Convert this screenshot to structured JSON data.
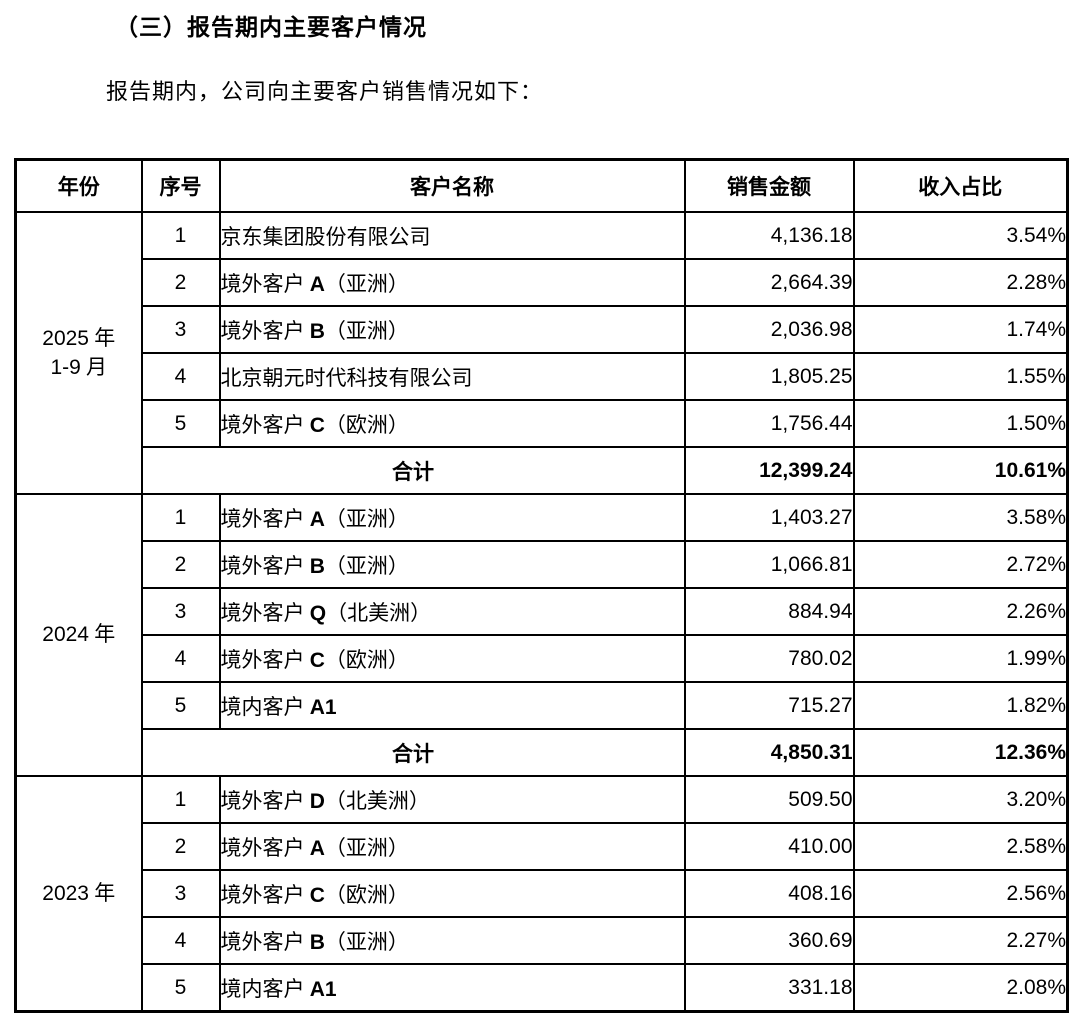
{
  "page": {
    "title": "（三）报告期内主要客户情况",
    "subtitle": "报告期内，公司向主要客户销售情况如下："
  },
  "table": {
    "headers": {
      "year": "年份",
      "index": "序号",
      "customer": "客户名称",
      "amount": "销售金额",
      "share": "收入占比"
    },
    "total_label": "合计",
    "groups": [
      {
        "year": "2025 年",
        "year_line2": "1-9 月",
        "rows": [
          {
            "index": "1",
            "customer": "京东集团股份有限公司",
            "amount": "4,136.18",
            "share": "3.54%"
          },
          {
            "index": "2",
            "customer": "境外客户 A（亚洲）",
            "amount": "2,664.39",
            "share": "2.28%"
          },
          {
            "index": "3",
            "customer": "境外客户 B（亚洲）",
            "amount": "2,036.98",
            "share": "1.74%"
          },
          {
            "index": "4",
            "customer": "北京朝元时代科技有限公司",
            "amount": "1,805.25",
            "share": "1.55%"
          },
          {
            "index": "5",
            "customer": "境外客户 C（欧洲）",
            "amount": "1,756.44",
            "share": "1.50%"
          }
        ],
        "total": {
          "amount": "12,399.24",
          "share": "10.61%"
        }
      },
      {
        "year": "2024 年",
        "rows": [
          {
            "index": "1",
            "customer": "境外客户 A（亚洲）",
            "amount": "1,403.27",
            "share": "3.58%"
          },
          {
            "index": "2",
            "customer": "境外客户 B（亚洲）",
            "amount": "1,066.81",
            "share": "2.72%"
          },
          {
            "index": "3",
            "customer": "境外客户 Q（北美洲）",
            "amount": "884.94",
            "share": "2.26%"
          },
          {
            "index": "4",
            "customer": "境外客户 C（欧洲）",
            "amount": "780.02",
            "share": "1.99%"
          },
          {
            "index": "5",
            "customer": "境内客户 A1",
            "amount": "715.27",
            "share": "1.82%"
          }
        ],
        "total": {
          "amount": "4,850.31",
          "share": "12.36%"
        }
      },
      {
        "year": "2023 年",
        "rows": [
          {
            "index": "1",
            "customer": "境外客户 D（北美洲）",
            "amount": "509.50",
            "share": "3.20%"
          },
          {
            "index": "2",
            "customer": "境外客户 A（亚洲）",
            "amount": "410.00",
            "share": "2.58%"
          },
          {
            "index": "3",
            "customer": "境外客户 C（欧洲）",
            "amount": "408.16",
            "share": "2.56%"
          },
          {
            "index": "4",
            "customer": "境外客户 B（亚洲）",
            "amount": "360.69",
            "share": "2.27%"
          },
          {
            "index": "5",
            "customer": "境内客户 A1",
            "amount": "331.18",
            "share": "2.08%"
          }
        ]
      }
    ]
  }
}
